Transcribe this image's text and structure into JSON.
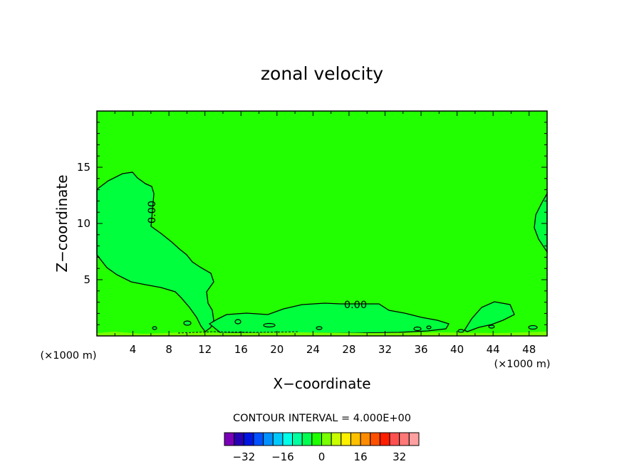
{
  "chart_data": {
    "type": "contour",
    "title": "zonal velocity",
    "xlabel": "X−coordinate",
    "ylabel": "Z−coordinate",
    "x_unit_left": "(×1000 m)",
    "x_unit_right": "(×1000 m)",
    "xlim": [
      0,
      50
    ],
    "ylim": [
      0,
      20
    ],
    "x_ticks": [
      4,
      8,
      12,
      16,
      20,
      24,
      28,
      32,
      36,
      40,
      44,
      48
    ],
    "y_ticks": [
      5,
      10,
      15
    ],
    "contour_interval_text": "CONTOUR INTERVAL = 4.000E+00",
    "contour_labels": [
      "0.00",
      "0.00"
    ],
    "colorbar": {
      "colors": [
        "#7a00b8",
        "#2800b4",
        "#0014e0",
        "#0050ff",
        "#0090ff",
        "#00c8ff",
        "#00ffe8",
        "#00ffa0",
        "#00ff50",
        "#1eff00",
        "#78ff00",
        "#c8ff00",
        "#fff000",
        "#ffc000",
        "#ff8c00",
        "#ff5000",
        "#ff1e00",
        "#ff5050",
        "#ff7878",
        "#ffa0a0"
      ],
      "tick_labels": [
        "−32",
        "−16",
        "0",
        "16",
        "32"
      ]
    },
    "background_color": "#22ff00",
    "region_color": "#00ff3c"
  }
}
